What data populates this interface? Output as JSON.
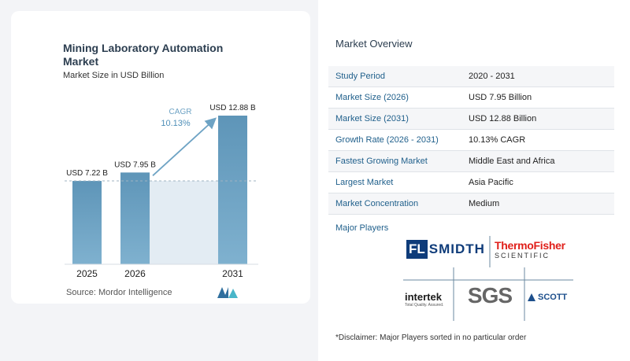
{
  "header": {
    "title": "Mining Laboratory Automation Market",
    "subtitle": "Market Size in USD Billion"
  },
  "chart_data": {
    "type": "bar",
    "categories": [
      "2025",
      "2026",
      "2031"
    ],
    "values": [
      7.22,
      7.95,
      12.88
    ],
    "value_labels": [
      "USD 7.22 B",
      "USD 7.95 B",
      "USD 12.88 B"
    ],
    "title": "Mining Laboratory Automation Market",
    "subtitle": "Market Size in USD Billion",
    "cagr_label": "CAGR",
    "cagr_value": "10.13%",
    "ylim": [
      0,
      12.88
    ],
    "colors": {
      "bar_top": "#5e95b8",
      "bar_bottom": "#7fb1cf",
      "shade": "#e3ecf3",
      "arrow": "#6ea3c4"
    }
  },
  "source": "Source:  Mordor Intelligence",
  "overview": {
    "title": "Market Overview",
    "rows": [
      {
        "key": "Study Period",
        "value": "2020 - 2031"
      },
      {
        "key": "Market Size (2026)",
        "value": "USD 7.95 Billion"
      },
      {
        "key": "Market Size (2031)",
        "value": "USD 12.88 Billion"
      },
      {
        "key": "Growth Rate (2026 - 2031)",
        "value": "10.13% CAGR"
      },
      {
        "key": "Fastest Growing Market",
        "value": "Middle East and Africa"
      },
      {
        "key": "Largest Market",
        "value": "Asia Pacific"
      },
      {
        "key": "Market Concentration",
        "value": "Medium"
      }
    ]
  },
  "players": {
    "title": "Major Players",
    "flsmidth_a": "FL",
    "flsmidth_b": "SMIDTH",
    "thermo_a": "ThermoFisher",
    "thermo_b": "SCIENTIFIC",
    "intertek_a": "intertek",
    "intertek_b": "Total Quality. Assured.",
    "sgs": "SGS",
    "scott": "SCOTT"
  },
  "disclaimer": "*Disclaimer: Major Players sorted in no particular order"
}
